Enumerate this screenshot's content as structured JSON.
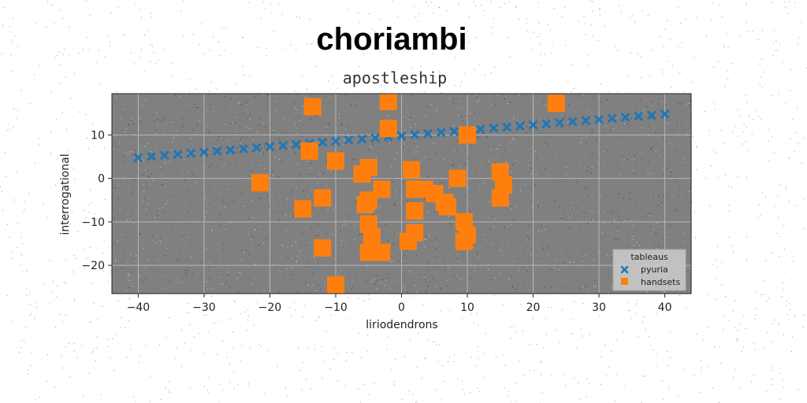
{
  "title": "choriambi",
  "subtitle": "apostleship",
  "chart_data": {
    "type": "scatter",
    "xlabel": "liriodendrons",
    "ylabel": "interrogational",
    "xlim": [
      -44,
      44
    ],
    "ylim": [
      -26.5,
      19.5
    ],
    "xticks": [
      -40,
      -30,
      -20,
      -10,
      0,
      10,
      20,
      30,
      40
    ],
    "yticks": [
      -20,
      -10,
      0,
      10
    ],
    "grid": true,
    "background": "#808080",
    "legend": {
      "title": "tableaus",
      "position": "lower-right"
    },
    "series": [
      {
        "name": "pyuria",
        "marker": "x",
        "color": "#1f77b4",
        "x": [
          -40,
          -38,
          -36,
          -34,
          -32,
          -30,
          -28,
          -26,
          -24,
          -22,
          -20,
          -18,
          -16,
          -14,
          -12,
          -10,
          -8,
          -6,
          -4,
          -2,
          0,
          2,
          4,
          6,
          8,
          10,
          12,
          14,
          16,
          18,
          20,
          22,
          24,
          26,
          28,
          30,
          32,
          34,
          36,
          38,
          40
        ],
        "y": [
          4.8,
          5.05,
          5.3,
          5.55,
          5.8,
          6.05,
          6.3,
          6.55,
          6.8,
          7.05,
          7.3,
          7.55,
          7.8,
          8.05,
          8.3,
          8.55,
          8.8,
          9.05,
          9.3,
          9.55,
          9.8,
          10.05,
          10.3,
          10.55,
          10.8,
          11.05,
          11.3,
          11.55,
          11.8,
          12.05,
          12.3,
          12.55,
          12.8,
          13.05,
          13.3,
          13.55,
          13.8,
          14.05,
          14.3,
          14.55,
          14.8
        ]
      },
      {
        "name": "handsets",
        "marker": "s",
        "color": "#ff7f0e",
        "x": [
          -13.5,
          -2,
          23.5,
          -2,
          10,
          -14,
          -10,
          -21.5,
          -5,
          -6,
          1.5,
          15,
          8.5,
          15.5,
          -3,
          2,
          3.5,
          5,
          -12,
          -5,
          -15,
          15,
          -5.5,
          2,
          6.5,
          7,
          9.5,
          -5,
          -4.5,
          10,
          2,
          9.5,
          1,
          -12,
          -5,
          -3,
          -10
        ],
        "y": [
          16.5,
          17.7,
          17.3,
          11.5,
          10,
          6.3,
          4,
          -1,
          2.5,
          1,
          2,
          1.5,
          0,
          -1.5,
          -2.5,
          -2.5,
          -2.5,
          -3.5,
          -4.5,
          -5,
          -7,
          -4.5,
          -6,
          -7.5,
          -5.5,
          -6.5,
          -10,
          -10.5,
          -13.5,
          -13,
          -12.5,
          -14.5,
          -14.5,
          -16,
          -17,
          -17,
          -24.5
        ]
      }
    ]
  }
}
